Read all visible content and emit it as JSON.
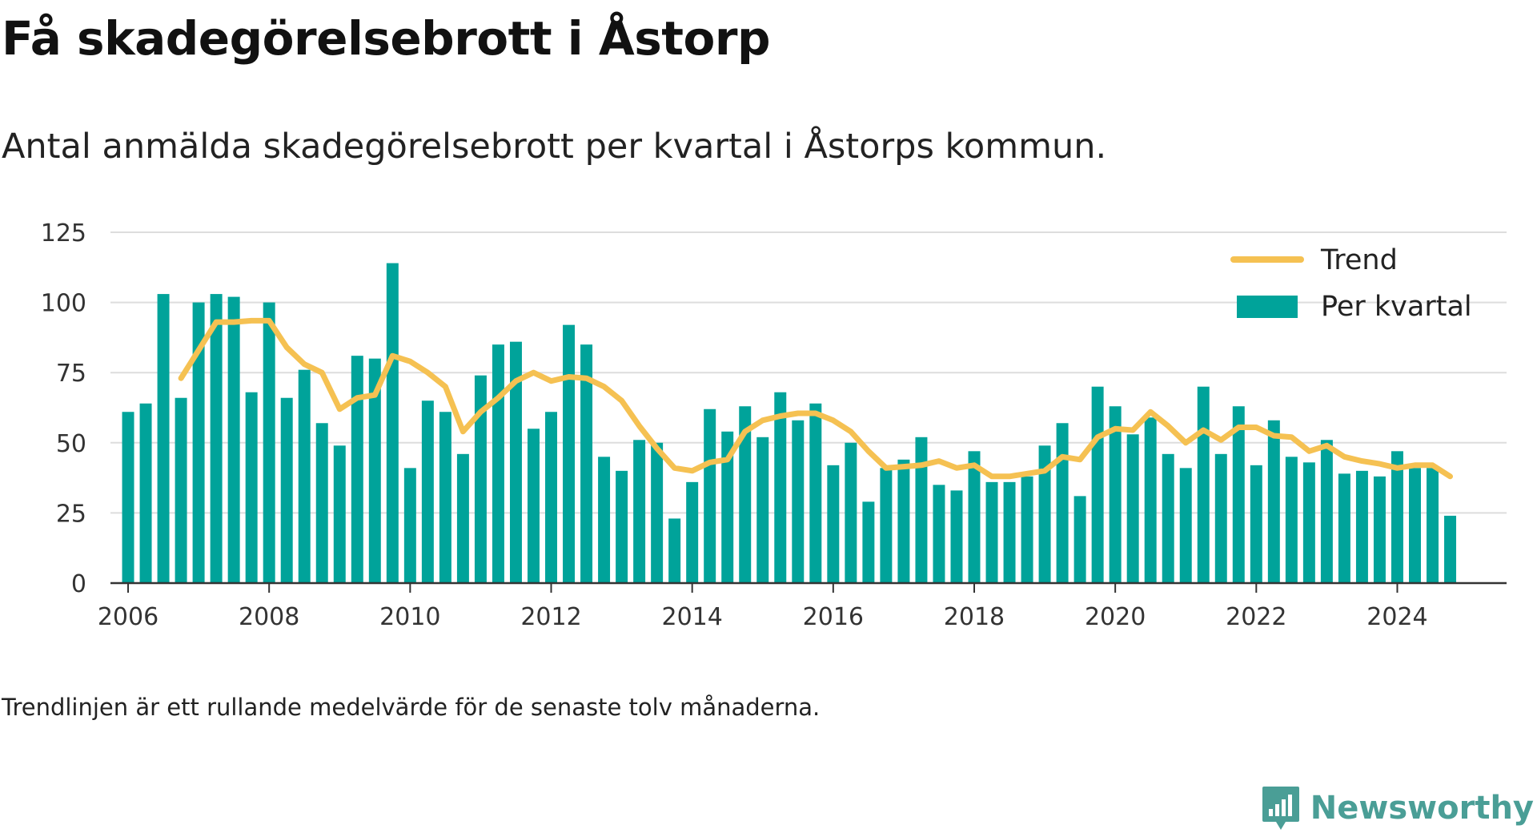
{
  "title": "Få skadegörelsebrott i Åstorp",
  "subtitle": "Antal anmälda skadegörelsebrott per kvartal i Åstorps kommun.",
  "footnote": "Trendlinjen är ett rullande medelvärde för de senaste tolv månaderna.",
  "brand": {
    "name": "Newsworthy",
    "icon": "newsworthy-logo-icon",
    "color": "#4a9e96"
  },
  "chart_data": {
    "type": "bar",
    "ylim": [
      0,
      125
    ],
    "yticks": [
      0,
      25,
      50,
      75,
      100,
      125
    ],
    "xlim": [
      2005.75,
      2025.55
    ],
    "xticks": [
      "2006",
      "2008",
      "2010",
      "2012",
      "2014",
      "2016",
      "2018",
      "2020",
      "2022",
      "2024"
    ],
    "grid": true,
    "legend": {
      "placement": "top-right",
      "entries": [
        "Trend",
        "Per kvartal"
      ]
    },
    "colors": {
      "bars": "#00a39a",
      "trend": "#f5c152",
      "grid": "#dddddd",
      "axis": "#333333"
    },
    "x": [
      "2006 Q1",
      "2006 Q2",
      "2006 Q3",
      "2006 Q4",
      "2007 Q1",
      "2007 Q2",
      "2007 Q3",
      "2007 Q4",
      "2008 Q1",
      "2008 Q2",
      "2008 Q3",
      "2008 Q4",
      "2009 Q1",
      "2009 Q2",
      "2009 Q3",
      "2009 Q4",
      "2010 Q1",
      "2010 Q2",
      "2010 Q3",
      "2010 Q4",
      "2011 Q1",
      "2011 Q2",
      "2011 Q3",
      "2011 Q4",
      "2012 Q1",
      "2012 Q2",
      "2012 Q3",
      "2012 Q4",
      "2013 Q1",
      "2013 Q2",
      "2013 Q3",
      "2013 Q4",
      "2014 Q1",
      "2014 Q2",
      "2014 Q3",
      "2014 Q4",
      "2015 Q1",
      "2015 Q2",
      "2015 Q3",
      "2015 Q4",
      "2016 Q1",
      "2016 Q2",
      "2016 Q3",
      "2016 Q4",
      "2017 Q1",
      "2017 Q2",
      "2017 Q3",
      "2017 Q4",
      "2018 Q1",
      "2018 Q2",
      "2018 Q3",
      "2018 Q4",
      "2019 Q1",
      "2019 Q2",
      "2019 Q3",
      "2019 Q4",
      "2020 Q1",
      "2020 Q2",
      "2020 Q3",
      "2020 Q4",
      "2021 Q1",
      "2021 Q2",
      "2021 Q3",
      "2021 Q4",
      "2022 Q1",
      "2022 Q2",
      "2022 Q3",
      "2022 Q4",
      "2023 Q1",
      "2023 Q2",
      "2023 Q3",
      "2023 Q4",
      "2024 Q1",
      "2024 Q2",
      "2024 Q3",
      "2024 Q4"
    ],
    "series": [
      {
        "name": "Per kvartal",
        "type": "bar",
        "values": [
          61,
          64,
          103,
          66,
          100,
          103,
          102,
          68,
          100,
          66,
          76,
          57,
          49,
          81,
          80,
          114,
          41,
          65,
          61,
          46,
          74,
          85,
          86,
          55,
          61,
          92,
          85,
          45,
          40,
          51,
          50,
          23,
          36,
          62,
          54,
          63,
          52,
          68,
          58,
          64,
          42,
          50,
          29,
          41,
          44,
          52,
          35,
          33,
          47,
          36,
          36,
          38,
          49,
          57,
          31,
          70,
          63,
          53,
          59,
          46,
          41,
          70,
          46,
          63,
          42,
          58,
          45,
          43,
          51,
          39,
          40,
          38,
          47,
          41,
          41,
          24
        ]
      },
      {
        "name": "Trend",
        "type": "line",
        "values": [
          null,
          null,
          null,
          73,
          83,
          93,
          93,
          93.5,
          93.5,
          84,
          78,
          75,
          62,
          66,
          67,
          81,
          79,
          75,
          70,
          54,
          61,
          66,
          72,
          75,
          72,
          73.5,
          73,
          70,
          65,
          56,
          48,
          41,
          40,
          43,
          44,
          54,
          58,
          59.5,
          60.5,
          60.5,
          58,
          54,
          47,
          41,
          41.5,
          42,
          43.5,
          41,
          42,
          38,
          38,
          39,
          40,
          45,
          44,
          52,
          55,
          54.5,
          61,
          56,
          50,
          54.5,
          51,
          55.5,
          55.5,
          52.5,
          52,
          47,
          49,
          45,
          43.5,
          42.5,
          41,
          42,
          42,
          38
        ]
      }
    ]
  }
}
